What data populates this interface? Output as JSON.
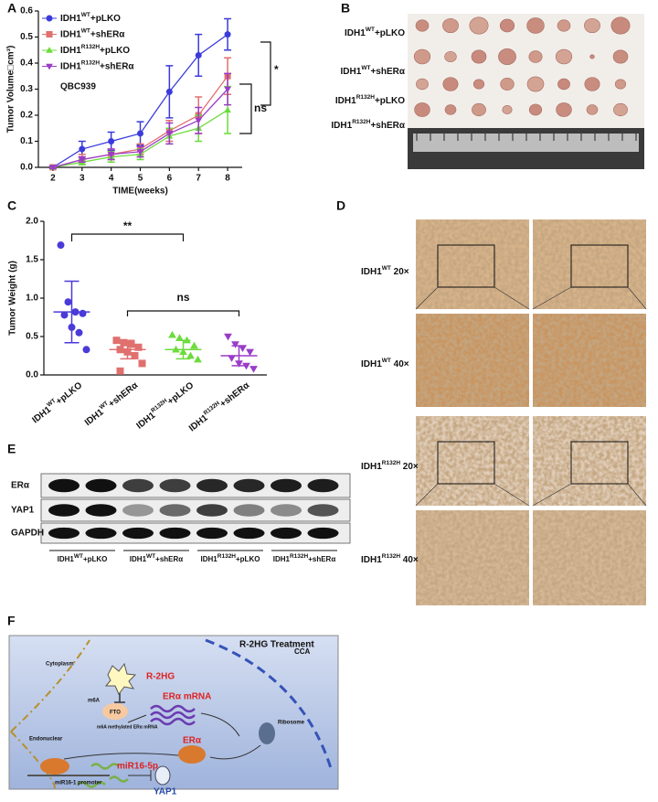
{
  "panel_labels": [
    "A",
    "B",
    "C",
    "D",
    "E",
    "F"
  ],
  "chart_data": [
    {
      "type": "line",
      "x_label": "TIME(weeks)",
      "y_label": "Tumor Volume□cm³)",
      "x": [
        2,
        3,
        4,
        5,
        6,
        7,
        8
      ],
      "xlim": [
        1.5,
        8.5
      ],
      "xticks": [
        2,
        3,
        4,
        5,
        6,
        7,
        8
      ],
      "ylim": [
        0,
        0.6
      ],
      "yticks": [
        {
          "value": 0,
          "label": "0.0"
        },
        0.1,
        0.2,
        0.3,
        0.4,
        0.5,
        0.6
      ],
      "series": [
        {
          "name": "IDH1WT+pLKO",
          "color": "#3b3bdc",
          "marker": "circle",
          "values": [
            0,
            0.07,
            0.1,
            0.13,
            0.29,
            0.43,
            0.51
          ],
          "errors": [
            0.005,
            0.03,
            0.035,
            0.045,
            0.1,
            0.08,
            0.06
          ]
        },
        {
          "name": "IDH1WT+shERα",
          "color": "#e0706e",
          "marker": "square",
          "values": [
            0,
            0.03,
            0.05,
            0.07,
            0.14,
            0.2,
            0.35
          ],
          "errors": [
            0.005,
            0.02,
            0.02,
            0.02,
            0.04,
            0.07,
            0.07
          ]
        },
        {
          "name": "IDH1R132H+pLKO",
          "color": "#6cdc3c",
          "marker": "triangle",
          "values": [
            0,
            0.02,
            0.04,
            0.05,
            0.12,
            0.15,
            0.22
          ],
          "errors": [
            0.005,
            0.01,
            0.02,
            0.02,
            0.03,
            0.05,
            0.09
          ]
        },
        {
          "name": "IDH1R132H+shERα",
          "color": "#9a3cc8",
          "marker": "triangle-down",
          "values": [
            0,
            0.03,
            0.05,
            0.06,
            0.13,
            0.18,
            0.3
          ],
          "errors": [
            0.005,
            0.01,
            0.02,
            0.02,
            0.04,
            0.05,
            0.06
          ]
        }
      ],
      "annotations": [
        "QBC939",
        "ns",
        "*"
      ]
    },
    {
      "type": "strip",
      "y_label": "Tumor Weight (g)",
      "categories": [
        "IDH1WT+pLKO",
        "IDH1WT+shERα",
        "IDH1R132H+pLKO",
        "IDH1R132H+shERα"
      ],
      "colors": [
        "#4a3ad8",
        "#e0706e",
        "#6cdc3c",
        "#9a3cc8"
      ],
      "markers": [
        "circle",
        "square",
        "triangle",
        "triangle-down"
      ],
      "points": [
        [
          1.69,
          0.95,
          0.82,
          0.8,
          0.78,
          0.62,
          0.55,
          0.33
        ],
        [
          0.45,
          0.42,
          0.4,
          0.36,
          0.33,
          0.3,
          0.25,
          0.15,
          0.05
        ],
        [
          0.52,
          0.48,
          0.45,
          0.38,
          0.33,
          0.3,
          0.25,
          0.2
        ],
        [
          0.5,
          0.4,
          0.35,
          0.3,
          0.22,
          0.15,
          0.12,
          0.08
        ]
      ],
      "means": [
        0.82,
        0.33,
        0.33,
        0.25
      ],
      "sds": [
        0.4,
        0.12,
        0.12,
        0.13
      ],
      "ylim": [
        0,
        2
      ],
      "yticks": [
        {
          "value": 0,
          "label": "0.0"
        },
        0.5,
        {
          "value": 1,
          "label": "1.0"
        },
        1.5,
        {
          "value": 2,
          "label": "2.0"
        }
      ],
      "annotations": [
        "**",
        "ns"
      ]
    }
  ],
  "photo": {
    "row_labels": [
      "IDH1WT+pLKO",
      "IDH1WT+shERα",
      "IDH1R132H+pLKO",
      "IDH1R132H+shERα"
    ]
  },
  "ihc": {
    "labels": [
      "IDH1WT 20×",
      "IDH1WT 40×",
      "IDH1R132H 20×",
      "IDH1R132H 40×"
    ]
  },
  "blot": {
    "rows": [
      "ERα",
      "YAP1",
      "GAPDH"
    ],
    "groups": [
      "IDH1WT+pLKO",
      "IDH1WT+shERα",
      "IDH1R132H+pLKO",
      "IDH1R132H+shERα"
    ]
  },
  "diagram": {
    "treatment": "R-2HG Treatment",
    "cell": "CCA",
    "cytoplasm": "Cytoplasm",
    "drug": "R-2HG",
    "m6a": "m6A",
    "fto": "FTO",
    "methylated": "m6A methylated ERα mRNA",
    "mrna": "ERα mRNA",
    "ribosome": "Ribosome",
    "nucleus": "Endonuclear",
    "protein": "ERα",
    "promoter": "miR16-1 promoter",
    "mirna": "miR16-5p",
    "target": "YAP1"
  }
}
